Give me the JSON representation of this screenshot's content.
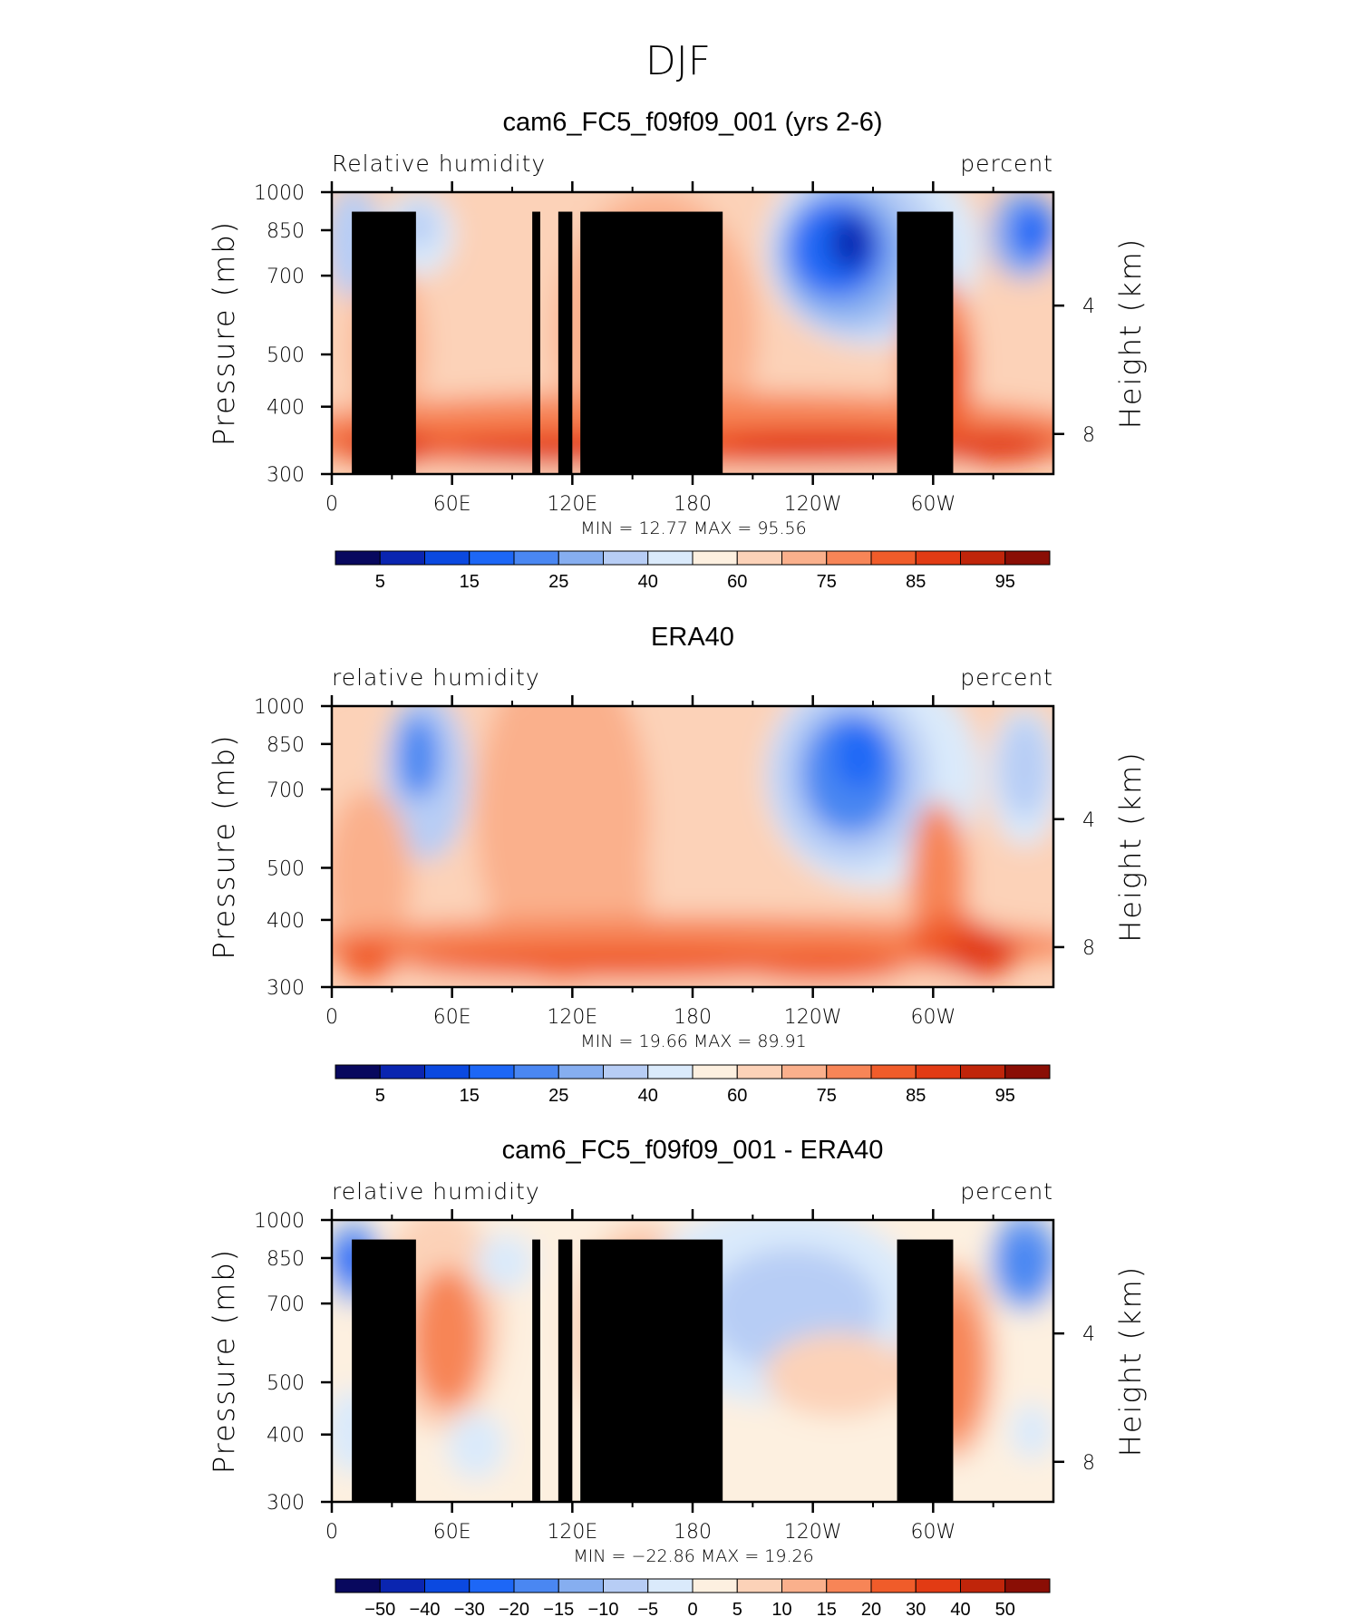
{
  "figure_title": "DJF",
  "colors": {
    "abs_palette": [
      "#08085e",
      "#0a25b0",
      "#0b49e0",
      "#1d67f6",
      "#4a87f2",
      "#86aef0",
      "#b7cdf5",
      "#daeafb",
      "#fdf0e0",
      "#fcd2b8",
      "#fab08c",
      "#f78557",
      "#f05c2a",
      "#e23b14",
      "#c0250a",
      "#8a0e05"
    ],
    "diff_palette": [
      "#08085e",
      "#0a25b0",
      "#0b49e0",
      "#1d67f6",
      "#4a87f2",
      "#86aef0",
      "#b7cdf5",
      "#daeafb",
      "#fdf0e0",
      "#fcd2b8",
      "#fab08c",
      "#f78557",
      "#f05c2a",
      "#e23b14",
      "#c0250a",
      "#8a0e05"
    ],
    "topography": "#000000"
  },
  "chart_data": [
    {
      "type": "heatmap",
      "title": "cam6_FC5_f09f09_001 (yrs 2-6)",
      "left_label": "Relative humidity",
      "right_label": "percent",
      "ylabel": "Pressure (mb)",
      "y2label": "Height (km)",
      "x_ticks": [
        "0",
        "60E",
        "120E",
        "180",
        "120W",
        "60W"
      ],
      "y_ticks": [
        "300",
        "400",
        "500",
        "700",
        "850",
        "1000"
      ],
      "y2_ticks": [
        "8",
        "4"
      ],
      "stats_label": "MIN = 12.77 MAX = 95.56",
      "min": 12.77,
      "max": 95.56,
      "colorbar_levels": [
        "5",
        "15",
        "25",
        "40",
        "60",
        "75",
        "85",
        "95"
      ],
      "xlim": [
        0,
        360
      ],
      "ylim": [
        1000,
        300
      ]
    },
    {
      "type": "heatmap",
      "title": "ERA40",
      "left_label": "relative humidity",
      "right_label": "percent",
      "ylabel": "Pressure (mb)",
      "y2label": "Height (km)",
      "x_ticks": [
        "0",
        "60E",
        "120E",
        "180",
        "120W",
        "60W"
      ],
      "y_ticks": [
        "300",
        "400",
        "500",
        "700",
        "850",
        "1000"
      ],
      "y2_ticks": [
        "8",
        "4"
      ],
      "stats_label": "MIN = 19.66 MAX = 89.91",
      "min": 19.66,
      "max": 89.91,
      "colorbar_levels": [
        "5",
        "15",
        "25",
        "40",
        "60",
        "75",
        "85",
        "95"
      ],
      "xlim": [
        0,
        360
      ],
      "ylim": [
        1000,
        300
      ]
    },
    {
      "type": "heatmap",
      "title": "cam6_FC5_f09f09_001 - ERA40",
      "left_label": "relative humidity",
      "right_label": "percent",
      "ylabel": "Pressure (mb)",
      "y2label": "Height (km)",
      "x_ticks": [
        "0",
        "60E",
        "120E",
        "180",
        "120W",
        "60W"
      ],
      "y_ticks": [
        "300",
        "400",
        "500",
        "700",
        "850",
        "1000"
      ],
      "y2_ticks": [
        "8",
        "4"
      ],
      "stats_label": "MIN = −22.86 MAX = 19.26",
      "min": -22.86,
      "max": 19.26,
      "colorbar_levels": [
        "−50",
        "−40",
        "−30",
        "−20",
        "−15",
        "−10",
        "−5",
        "0",
        "5",
        "10",
        "15",
        "20",
        "30",
        "40",
        "50"
      ],
      "xlim": [
        0,
        360
      ],
      "ylim": [
        1000,
        300
      ]
    }
  ]
}
